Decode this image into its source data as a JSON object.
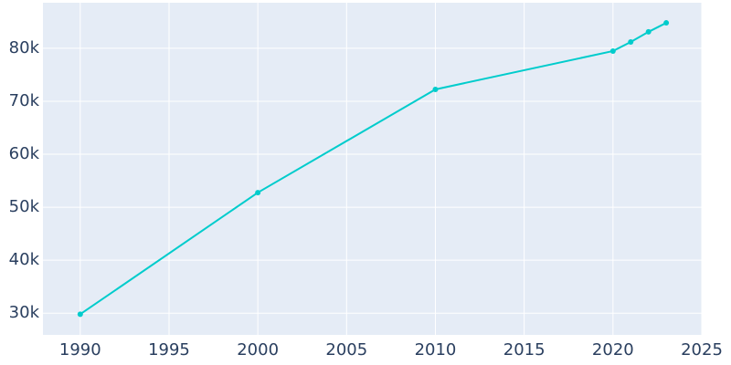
{
  "chart_data": {
    "type": "line",
    "x": [
      1990,
      2000,
      2010,
      2020,
      2021,
      2022,
      2023
    ],
    "series": [
      {
        "color": "#00cccc",
        "values": [
          29800,
          52760,
          72240,
          79480,
          81200,
          83100,
          84800
        ]
      }
    ],
    "xlim": [
      1987.9,
      2025
    ],
    "xticks": [
      1990,
      1995,
      2000,
      2005,
      2010,
      2015,
      2020,
      2025
    ],
    "ylim": [
      25900,
      88600
    ],
    "yticks": [
      {
        "value": 30000,
        "label": "30k"
      },
      {
        "value": 40000,
        "label": "40k"
      },
      {
        "value": 50000,
        "label": "50k"
      },
      {
        "value": 60000,
        "label": "60k"
      },
      {
        "value": 70000,
        "label": "70k"
      },
      {
        "value": 80000,
        "label": "80k"
      }
    ],
    "grid": true,
    "background": "#e5ecf6"
  }
}
